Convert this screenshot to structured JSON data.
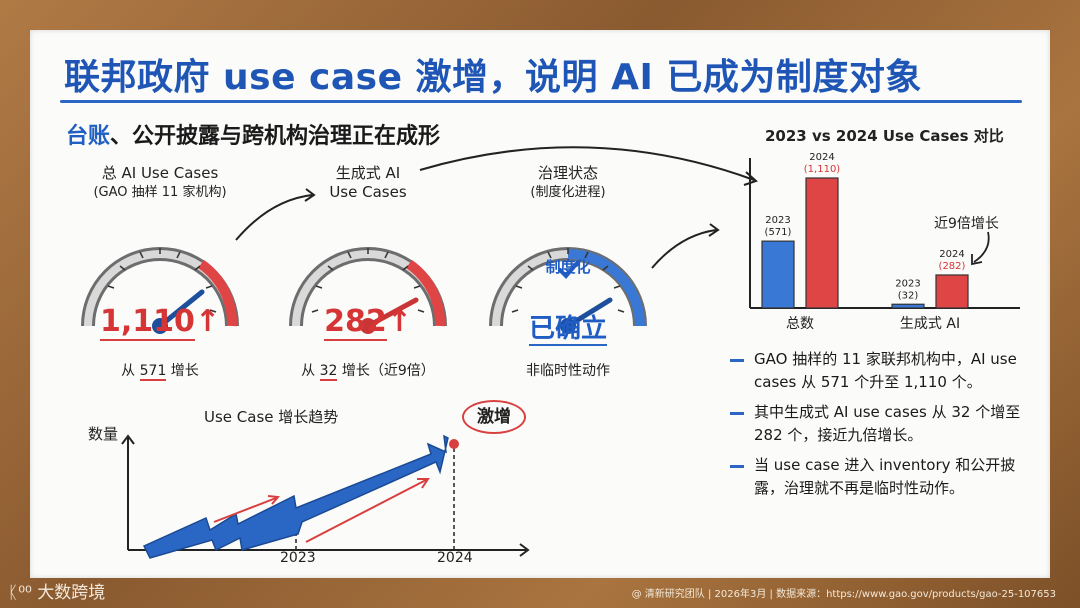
{
  "title": "联邦政府 use case 激增，说明 AI 已成为制度对象",
  "subtitle": {
    "part1": "台账",
    "part2": "、公开披露与跨机构治理正在成形"
  },
  "gauges": [
    {
      "label1": "总 AI Use Cases",
      "label2": "(GAO 抽样 11 家机构)",
      "value": "1,110",
      "arrow": "↑",
      "sub_pre": "从 ",
      "sub_num": "571",
      "sub_post": " 增长"
    },
    {
      "label1": "生成式 AI",
      "label2": "Use Cases",
      "value": "282",
      "arrow": "↑",
      "sub_pre": "从 ",
      "sub_num": "32",
      "sub_post": " 增长（近9倍）"
    },
    {
      "label1": "治理状态",
      "label2": "(制度化进程)",
      "inner": "制度化",
      "value": "已确立",
      "sub": "非临时性动作"
    }
  ],
  "trend": {
    "title": "Use Case 增长趋势",
    "ylabel": "数量",
    "x1": "2023",
    "x2": "2024",
    "badge": "激增"
  },
  "chart_data": {
    "type": "bar",
    "title": "2023 vs 2024 Use Cases 对比",
    "categories": [
      "总数",
      "生成式 AI"
    ],
    "series": [
      {
        "name": "2023",
        "values": [
          571,
          32
        ]
      },
      {
        "name": "2024",
        "values": [
          1110,
          282
        ]
      }
    ],
    "value_labels": [
      [
        "2023",
        "(571)"
      ],
      [
        "2024",
        "(1,110)"
      ],
      [
        "2023",
        "(32)"
      ],
      [
        "2024",
        "(282)"
      ]
    ],
    "annotation": "近9倍增长",
    "colors": {
      "2023": "#3a78d6",
      "2024": "#e04545"
    }
  },
  "bullets": {
    "b1": "GAO 抽样的 11 家联邦机构中，AI use cases 从 571 个升至 1,110 个。",
    "b2": "其中生成式 AI use cases 从 32 个增至 282 个，接近九倍增长。",
    "b3": "当 use case 进入 inventory 和公开披露，治理就不再是临时性动作。"
  },
  "footer": {
    "logo": "大数跨境",
    "source": "@ 清新研究团队 | 2026年3月 | 数据来源：https://www.gao.gov/products/gao-25-107653"
  }
}
